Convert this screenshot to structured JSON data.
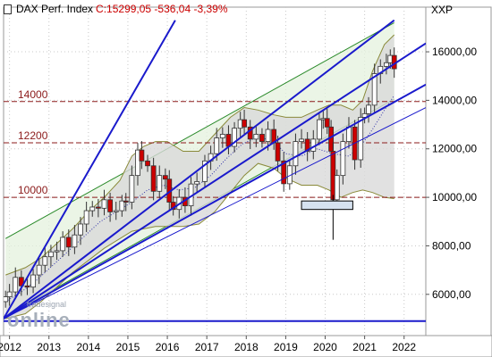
{
  "header": {
    "symbol": "DAX Perf. Index",
    "values": "C:15299,05  -536,04 -3,39%",
    "right_label": "XXP"
  },
  "watermark": {
    "small": "tradesignal",
    "brand": "online"
  },
  "colors": {
    "background": "#ffffff",
    "grid": "#c8c8c8",
    "trendline": "#1a1acc",
    "support_line": "#8b1a1a",
    "channel": "#2a8a2a",
    "bollinger_fill": "#d9d9d9",
    "bollinger_edge": "#8a8a3a",
    "candle_up": "#ffffff",
    "candle_down": "#cc0000",
    "moving_average": "#3333aa"
  },
  "chart_data": {
    "type": "candlestick",
    "title": "DAX Perf. Index",
    "x_ticks": [
      "2012",
      "2013",
      "2014",
      "2015",
      "2016",
      "2017",
      "2018",
      "2019",
      "2020",
      "2021",
      "2022"
    ],
    "y_ticks": [
      "6000,00",
      "8000,00",
      "10000,00",
      "12000,00",
      "14000,00",
      "16000,00"
    ],
    "ylim": [
      4300,
      17400
    ],
    "xlim": [
      2011.85,
      2022.55
    ],
    "grid": true,
    "horizontal_levels": [
      {
        "label": "14000",
        "value": 13950
      },
      {
        "label": "12200",
        "value": 12250
      },
      {
        "label": "10000",
        "value": 10000
      }
    ],
    "bottom_support": 4900,
    "last_close": 15299.05,
    "change": -536.04,
    "change_pct": -3.39,
    "series_close": [
      [
        2011.9,
        5900
      ],
      [
        2012.0,
        6100
      ],
      [
        2012.15,
        6700
      ],
      [
        2012.3,
        6350
      ],
      [
        2012.45,
        6300
      ],
      [
        2012.6,
        6800
      ],
      [
        2012.75,
        7200
      ],
      [
        2012.9,
        7550
      ],
      [
        2013.05,
        7750
      ],
      [
        2013.2,
        7800
      ],
      [
        2013.35,
        8350
      ],
      [
        2013.5,
        7950
      ],
      [
        2013.65,
        8450
      ],
      [
        2013.8,
        8900
      ],
      [
        2013.95,
        9450
      ],
      [
        2014.1,
        9600
      ],
      [
        2014.25,
        9550
      ],
      [
        2014.4,
        9900
      ],
      [
        2014.55,
        9400
      ],
      [
        2014.7,
        9450
      ],
      [
        2014.85,
        9850
      ],
      [
        2014.95,
        9800
      ],
      [
        2015.1,
        10900
      ],
      [
        2015.25,
        11950
      ],
      [
        2015.35,
        11500
      ],
      [
        2015.5,
        11300
      ],
      [
        2015.65,
        10250
      ],
      [
        2015.8,
        10900
      ],
      [
        2015.95,
        10750
      ],
      [
        2016.05,
        9800
      ],
      [
        2016.15,
        9500
      ],
      [
        2016.3,
        10000
      ],
      [
        2016.45,
        9650
      ],
      [
        2016.6,
        10550
      ],
      [
        2016.75,
        10650
      ],
      [
        2016.95,
        11500
      ],
      [
        2017.1,
        11800
      ],
      [
        2017.25,
        12450
      ],
      [
        2017.4,
        12600
      ],
      [
        2017.55,
        12100
      ],
      [
        2017.7,
        12850
      ],
      [
        2017.85,
        13200
      ],
      [
        2017.95,
        12900
      ],
      [
        2018.1,
        12400
      ],
      [
        2018.25,
        12600
      ],
      [
        2018.4,
        12300
      ],
      [
        2018.55,
        12800
      ],
      [
        2018.7,
        12250
      ],
      [
        2018.8,
        11500
      ],
      [
        2018.95,
        10560
      ],
      [
        2019.1,
        11300
      ],
      [
        2019.25,
        12300
      ],
      [
        2019.4,
        12400
      ],
      [
        2019.55,
        11900
      ],
      [
        2019.7,
        12400
      ],
      [
        2019.85,
        13200
      ],
      [
        2019.95,
        13250
      ],
      [
        2020.05,
        12900
      ],
      [
        2020.15,
        11900
      ],
      [
        2020.2,
        9900
      ],
      [
        2020.3,
        10900
      ],
      [
        2020.45,
        12300
      ],
      [
        2020.6,
        12900
      ],
      [
        2020.75,
        11550
      ],
      [
        2020.9,
        13300
      ],
      [
        2021.0,
        13450
      ],
      [
        2021.1,
        13800
      ],
      [
        2021.25,
        15100
      ],
      [
        2021.4,
        15400
      ],
      [
        2021.55,
        15550
      ],
      [
        2021.65,
        15850
      ],
      [
        2021.75,
        15300
      ]
    ],
    "series_ma": [
      [
        2011.9,
        5700
      ],
      [
        2012.3,
        6100
      ],
      [
        2012.7,
        6600
      ],
      [
        2013.1,
        7200
      ],
      [
        2013.5,
        7800
      ],
      [
        2013.9,
        8400
      ],
      [
        2014.3,
        9000
      ],
      [
        2014.7,
        9400
      ],
      [
        2015.1,
        9800
      ],
      [
        2015.5,
        10300
      ],
      [
        2015.9,
        10500
      ],
      [
        2016.3,
        10300
      ],
      [
        2016.7,
        10400
      ],
      [
        2017.1,
        10900
      ],
      [
        2017.5,
        11600
      ],
      [
        2017.9,
        12200
      ],
      [
        2018.3,
        12500
      ],
      [
        2018.7,
        12300
      ],
      [
        2019.0,
        11800
      ],
      [
        2019.4,
        11700
      ],
      [
        2019.8,
        12000
      ],
      [
        2020.2,
        11800
      ],
      [
        2020.6,
        11700
      ],
      [
        2020.9,
        12100
      ],
      [
        2021.2,
        12800
      ],
      [
        2021.5,
        13600
      ],
      [
        2021.75,
        14200
      ]
    ],
    "series_bb_upper": [
      [
        2011.9,
        6800
      ],
      [
        2012.4,
        7100
      ],
      [
        2012.8,
        7500
      ],
      [
        2013.2,
        8100
      ],
      [
        2013.6,
        8700
      ],
      [
        2014.0,
        9400
      ],
      [
        2014.4,
        10000
      ],
      [
        2014.8,
        10700
      ],
      [
        2015.1,
        11700
      ],
      [
        2015.4,
        12100
      ],
      [
        2015.7,
        12300
      ],
      [
        2016.0,
        12300
      ],
      [
        2016.4,
        11900
      ],
      [
        2016.8,
        11900
      ],
      [
        2017.2,
        12600
      ],
      [
        2017.6,
        13300
      ],
      [
        2017.95,
        13700
      ],
      [
        2018.3,
        13600
      ],
      [
        2018.7,
        13400
      ],
      [
        2019.0,
        13300
      ],
      [
        2019.4,
        13300
      ],
      [
        2019.8,
        13600
      ],
      [
        2020.1,
        13800
      ],
      [
        2020.4,
        13800
      ],
      [
        2020.7,
        13600
      ],
      [
        2020.95,
        14000
      ],
      [
        2021.2,
        15200
      ],
      [
        2021.5,
        16300
      ],
      [
        2021.75,
        16700
      ]
    ],
    "series_bb_lower": [
      [
        2011.9,
        5000
      ],
      [
        2012.4,
        5200
      ],
      [
        2012.8,
        5700
      ],
      [
        2013.2,
        6300
      ],
      [
        2013.6,
        6900
      ],
      [
        2014.0,
        7400
      ],
      [
        2014.4,
        7900
      ],
      [
        2014.8,
        8300
      ],
      [
        2015.1,
        8600
      ],
      [
        2015.4,
        8700
      ],
      [
        2015.7,
        8800
      ],
      [
        2016.0,
        8800
      ],
      [
        2016.4,
        8800
      ],
      [
        2016.8,
        8900
      ],
      [
        2017.2,
        9400
      ],
      [
        2017.6,
        10200
      ],
      [
        2017.95,
        10900
      ],
      [
        2018.3,
        11400
      ],
      [
        2018.7,
        11200
      ],
      [
        2019.0,
        10800
      ],
      [
        2019.4,
        10500
      ],
      [
        2019.8,
        10500
      ],
      [
        2020.1,
        10300
      ],
      [
        2020.4,
        10000
      ],
      [
        2020.7,
        10200
      ],
      [
        2020.95,
        10300
      ],
      [
        2021.2,
        10200
      ],
      [
        2021.5,
        10000
      ],
      [
        2021.75,
        9950
      ]
    ],
    "trendlines": [
      {
        "x1": 2011.85,
        "y1": 5000,
        "x2": 2021.75,
        "y2": 17300,
        "kind": "upper_fan"
      },
      {
        "x1": 2011.85,
        "y1": 5000,
        "x2": 2022.55,
        "y2": 14650,
        "kind": "lower_fan"
      },
      {
        "x1": 2011.85,
        "y1": 5000,
        "x2": 2022.55,
        "y2": 16350,
        "kind": "middle_fan"
      },
      {
        "x1": 2011.85,
        "y1": 5000,
        "x2": 2016.2,
        "y2": 17300,
        "kind": "steep_fan"
      },
      {
        "x1": 2011.85,
        "y1": 5000,
        "x2": 2022.55,
        "y2": 13700,
        "kind": "base_fan"
      }
    ],
    "channel": {
      "upper": [
        [
          2011.9,
          8300
        ],
        [
          2021.75,
          17200
        ]
      ],
      "lower": [
        [
          2011.9,
          5100
        ],
        [
          2021.75,
          14050
        ]
      ]
    },
    "marked_box": {
      "x1": 2019.4,
      "x2": 2020.7,
      "y1": 9500,
      "y2": 9850
    }
  }
}
